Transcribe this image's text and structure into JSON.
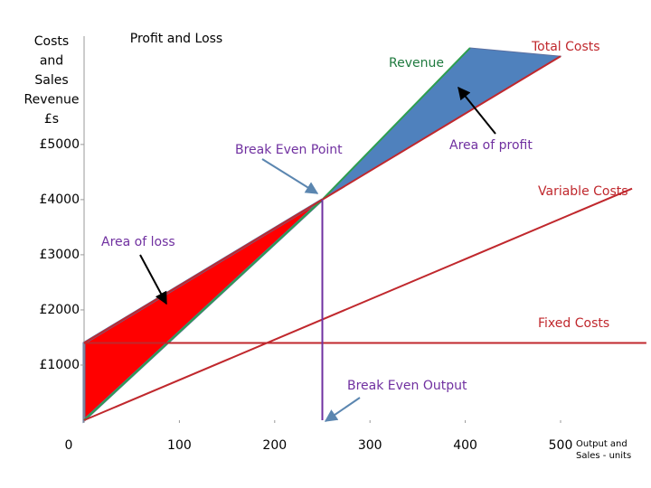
{
  "chart_data": {
    "type": "line",
    "title": "Profit and Loss",
    "y_label": [
      "Costs",
      "and",
      "Sales",
      "Revenue",
      "£s"
    ],
    "x_label": [
      "Output and",
      "Sales - units"
    ],
    "xlim": [
      0,
      500
    ],
    "ylim": [
      0,
      6800
    ],
    "xticks": [
      0,
      100,
      200,
      300,
      400,
      500
    ],
    "yticks": [
      {
        "value": 1000,
        "label": "£1000"
      },
      {
        "value": 2000,
        "label": "£2000"
      },
      {
        "value": 3000,
        "label": "£3000"
      },
      {
        "value": 4000,
        "label": "£4000"
      },
      {
        "value": 5000,
        "label": "£5000"
      }
    ],
    "grid": false,
    "series": [
      {
        "name": "Revenue",
        "color": "#2e9e4f",
        "x": [
          0,
          250,
          405
        ],
        "values": [
          0,
          4000,
          6750
        ]
      },
      {
        "name": "Total Costs",
        "color": "#c0282d",
        "x": [
          0,
          500
        ],
        "values": [
          1400,
          6600
        ]
      },
      {
        "name": "Variable Costs",
        "color": "#c0282d",
        "x": [
          0,
          575
        ],
        "values": [
          0,
          4200
        ]
      },
      {
        "name": "Fixed Costs",
        "color": "#c0282d",
        "x": [
          0,
          590
        ],
        "values": [
          1400,
          1400
        ]
      }
    ],
    "break_even": {
      "x": 250,
      "y": 4000
    },
    "annotations": {
      "break_even_point": "Break Even Point",
      "break_even_output": "Break Even Output",
      "area_of_profit": "Area of profit",
      "area_of_loss": "Area of loss"
    },
    "profit_color": "#4f81bd",
    "loss_color": "#ff0000"
  }
}
